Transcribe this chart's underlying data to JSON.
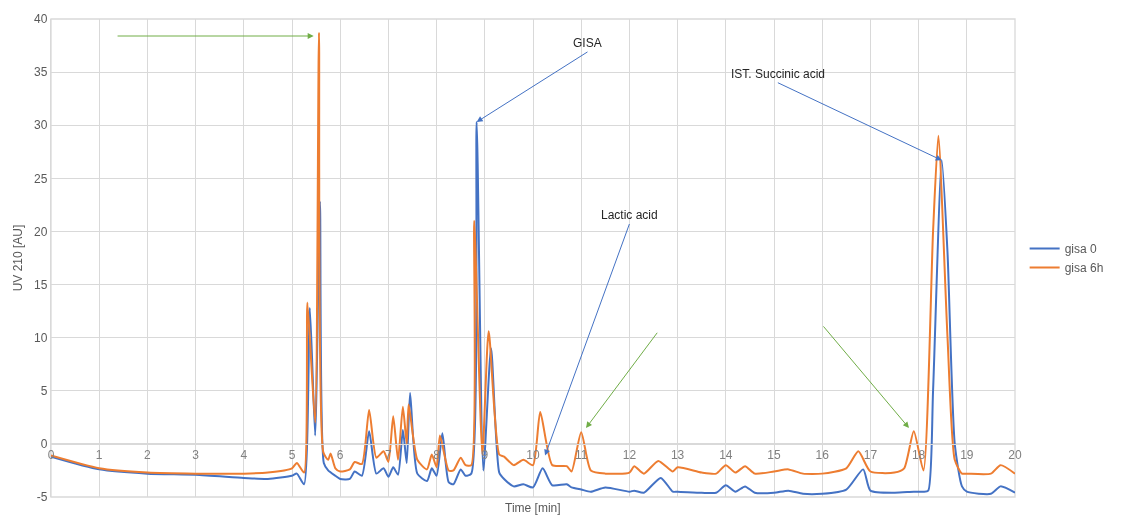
{
  "chart_data": {
    "type": "line",
    "xlabel": "Time [min]",
    "ylabel": "UV 210 [AU]",
    "xlim": [
      0,
      20
    ],
    "xticks": [
      0,
      1,
      2,
      3,
      4,
      5,
      6,
      7,
      8,
      9,
      10,
      11,
      12,
      13,
      14,
      15,
      16,
      17,
      18,
      19,
      20
    ],
    "ylim": [
      -5,
      40
    ],
    "yticks": [
      -5,
      0,
      5,
      10,
      15,
      20,
      25,
      30,
      35,
      40
    ],
    "grid": true,
    "legend": "right",
    "marker": "none",
    "line_style": "solid",
    "annotations": [
      {
        "text": "GISA",
        "x": 8.83,
        "y": 30.3
      },
      {
        "text": "Lactic acid",
        "x": 10.25,
        "y": -1.1
      },
      {
        "text": "IST. Succinic acid",
        "x": 18.48,
        "y": 26.7
      }
    ],
    "series": [
      {
        "name": "gisa 0",
        "color": "#4472c4",
        "x": [
          0,
          1,
          2,
          3,
          4,
          4.5,
          5,
          5.1,
          5.25,
          5.37,
          5.48,
          5.58,
          5.66,
          5.75,
          5.9,
          6,
          6.2,
          6.3,
          6.45,
          6.6,
          6.75,
          6.9,
          7,
          7.1,
          7.2,
          7.3,
          7.38,
          7.45,
          7.6,
          7.8,
          7.9,
          8,
          8.12,
          8.25,
          8.35,
          8.5,
          8.6,
          8.72,
          8.83,
          8.97,
          9.13,
          9.3,
          9.4,
          9.6,
          9.8,
          10,
          10.2,
          10.4,
          10.7,
          10.8,
          11,
          11.2,
          11.5,
          12,
          12.1,
          12.3,
          12.65,
          12.9,
          13,
          13.5,
          13.8,
          14,
          14.2,
          14.4,
          14.6,
          15,
          15.3,
          15.6,
          16,
          16.5,
          16.85,
          17,
          17.5,
          17.9,
          18.1,
          18.2,
          18.3,
          18.48,
          18.6,
          18.75,
          18.9,
          19,
          19.5,
          19.7,
          20
        ],
        "values": [
          -1.2,
          -2.4,
          -2.8,
          -2.9,
          -3.2,
          -3.3,
          -3.0,
          -2.8,
          -3.8,
          12.8,
          0.8,
          22.8,
          -1.8,
          -2.5,
          -3.0,
          -3.3,
          -3.3,
          -2.6,
          -3.0,
          1.2,
          -2.8,
          -2.3,
          -3.1,
          -2.2,
          -2.9,
          1.3,
          -1.8,
          4.8,
          -2.8,
          -3.5,
          -2.3,
          -3.0,
          1.0,
          -3.6,
          -3.8,
          -2.4,
          -3.0,
          -2.8,
          30.3,
          -2.5,
          9.0,
          -2.7,
          -3.3,
          -4.0,
          -3.8,
          -4.1,
          -2.3,
          -3.9,
          -3.8,
          -4.1,
          -4.3,
          -4.5,
          -4.1,
          -4.5,
          -4.4,
          -4.6,
          -3.2,
          -4.5,
          -4.5,
          -4.6,
          -4.6,
          -3.9,
          -4.5,
          -4.0,
          -4.6,
          -4.6,
          -4.4,
          -4.7,
          -4.7,
          -4.3,
          -2.4,
          -4.4,
          -4.6,
          -4.5,
          -4.5,
          -4.4,
          5.0,
          26.7,
          18.0,
          0.0,
          -4.0,
          -4.5,
          -4.7,
          -4.0,
          -4.6
        ]
      },
      {
        "name": "gisa 6h",
        "color": "#ed7d31",
        "x": [
          0,
          1,
          2,
          3,
          4,
          4.5,
          5,
          5.1,
          5.25,
          5.32,
          5.48,
          5.56,
          5.65,
          5.75,
          5.8,
          5.9,
          6,
          6.2,
          6.3,
          6.45,
          6.6,
          6.75,
          6.9,
          7,
          7.1,
          7.2,
          7.3,
          7.38,
          7.42,
          7.6,
          7.8,
          7.9,
          8,
          8.07,
          8.25,
          8.35,
          8.5,
          8.6,
          8.72,
          8.78,
          8.95,
          9.08,
          9.3,
          9.4,
          9.6,
          9.8,
          10,
          10.15,
          10.4,
          10.7,
          10.8,
          11,
          11.2,
          11.5,
          12,
          12.1,
          12.3,
          12.6,
          12.9,
          13,
          13.5,
          13.8,
          14,
          14.2,
          14.4,
          14.6,
          15,
          15.3,
          15.6,
          16,
          16.5,
          16.75,
          17,
          17.5,
          17.7,
          17.9,
          18.1,
          18.3,
          18.41,
          18.6,
          18.75,
          18.9,
          19,
          19.5,
          19.7,
          20
        ],
        "values": [
          -1.1,
          -2.3,
          -2.7,
          -2.8,
          -2.8,
          -2.7,
          -2.3,
          -1.8,
          -2.7,
          13.3,
          2.0,
          38.7,
          -0.8,
          -1.5,
          -0.9,
          -2.3,
          -2.6,
          -2.4,
          -1.7,
          -1.9,
          3.2,
          -1.3,
          -0.7,
          -1.7,
          2.6,
          -1.5,
          3.5,
          0.0,
          3.7,
          -1.5,
          -2.4,
          -1.0,
          -2.2,
          0.8,
          -2.5,
          -2.5,
          -1.3,
          -2.0,
          -2.0,
          21.0,
          -1.0,
          10.6,
          -1.0,
          -1.2,
          -2.0,
          -1.5,
          -2.0,
          3.0,
          -2.0,
          -2.1,
          -2.6,
          1.1,
          -2.5,
          -2.8,
          -2.7,
          -2.1,
          -2.8,
          -1.6,
          -2.6,
          -2.2,
          -2.7,
          -2.8,
          -2.0,
          -2.7,
          -2.1,
          -2.8,
          -2.6,
          -2.4,
          -2.8,
          -2.8,
          -2.3,
          -0.7,
          -2.6,
          -2.7,
          -2.3,
          1.2,
          -2.5,
          20.0,
          29.0,
          10.0,
          -1.5,
          -2.8,
          -2.8,
          -2.8,
          -2.0,
          -2.8
        ]
      }
    ]
  }
}
